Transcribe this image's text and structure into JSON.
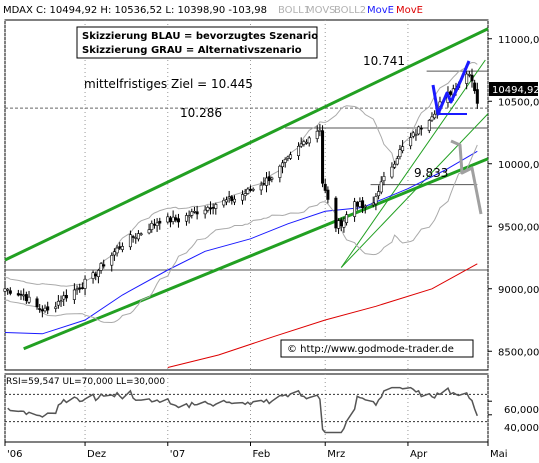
{
  "header": {
    "symbol": "MDAX",
    "quote": "C: 10494,92 H: 10536,52 L: 10398,90 -103,98",
    "indicators": [
      {
        "label": "BOLL1",
        "color": "#c0c0c0"
      },
      {
        "label": "MOVS",
        "color": "#c0c0c0"
      },
      {
        "label": "BOLL2",
        "color": "#c0c0c0"
      },
      {
        "label": "MovE",
        "color": "#1a1aff"
      },
      {
        "label": "MovE",
        "color": "#dd0000"
      }
    ]
  },
  "legend_box": {
    "line1": "Skizzierung BLAU = bevorzugtes Szenario",
    "line2": "Skizzierung GRAU = Alternativszenario"
  },
  "annotations": {
    "target": "mittelfristiges Ziel = 10.445",
    "level_high": "10.741",
    "level_mid": "10.286",
    "level_low": "9.833"
  },
  "credit": "© http://www.godmode-trader.de",
  "last_price_label": "10494,92",
  "rsi": {
    "header": "RSI=59,547 UL=70,000 LL=30,000",
    "upper": 70,
    "lower": 30,
    "ticks": [
      "60,000",
      "40,000"
    ]
  },
  "colors": {
    "channel": "#22a022",
    "blue_scenario": "#1a1aff",
    "grey_scenario": "#a0a0a0",
    "ma_blue": "#1a1aff",
    "ma_red": "#dd0000"
  },
  "chart_data": {
    "type": "candlestick",
    "title": "MDAX",
    "y_ticks": [
      "11000,00",
      "10500,00",
      "10000,00",
      "9500,00",
      "9000,00",
      "8500,00"
    ],
    "y_tick_values": [
      11000,
      10500,
      10000,
      9500,
      9000,
      8500
    ],
    "x_ticks": [
      {
        "label": "'06",
        "date": "2006-11-01"
      },
      {
        "label": "Dez",
        "date": "2006-12-01"
      },
      {
        "label": "'07",
        "date": "2007-01-01"
      },
      {
        "label": "Feb",
        "date": "2007-02-01"
      },
      {
        "label": "Mrz",
        "date": "2007-03-01"
      },
      {
        "label": "Apr",
        "date": "2007-04-01"
      },
      {
        "label": "Mai",
        "date": "2007-05-01"
      }
    ],
    "ylim": [
      8350,
      11150
    ],
    "date_range": [
      "2006-11-01",
      "2007-05-01"
    ],
    "horizontal_levels": [
      10741,
      10445,
      10286,
      9833,
      9150
    ],
    "close_path": [
      [
        "2006-11-01",
        9000
      ],
      [
        "2006-11-08",
        8950
      ],
      [
        "2006-11-13",
        8850
      ],
      [
        "2006-11-17",
        8820
      ],
      [
        "2006-11-22",
        8920
      ],
      [
        "2006-11-28",
        9000
      ],
      [
        "2006-12-04",
        9100
      ],
      [
        "2006-12-10",
        9250
      ],
      [
        "2006-12-16",
        9380
      ],
      [
        "2006-12-22",
        9450
      ],
      [
        "2006-12-29",
        9550
      ],
      [
        "2007-01-05",
        9550
      ],
      [
        "2007-01-12",
        9620
      ],
      [
        "2007-01-19",
        9680
      ],
      [
        "2007-01-26",
        9720
      ],
      [
        "2007-02-02",
        9800
      ],
      [
        "2007-02-09",
        9900
      ],
      [
        "2007-02-16",
        10050
      ],
      [
        "2007-02-22",
        10200
      ],
      [
        "2007-02-27",
        10286
      ],
      [
        "2007-02-28",
        9850
      ],
      [
        "2007-03-02",
        9700
      ],
      [
        "2007-03-05",
        9500
      ],
      [
        "2007-03-08",
        9550
      ],
      [
        "2007-03-12",
        9700
      ],
      [
        "2007-03-15",
        9650
      ],
      [
        "2007-03-18",
        9620
      ],
      [
        "2007-03-21",
        9800
      ],
      [
        "2007-03-25",
        9950
      ],
      [
        "2007-03-29",
        10100
      ],
      [
        "2007-04-04",
        10250
      ],
      [
        "2007-04-10",
        10400
      ],
      [
        "2007-04-16",
        10550
      ],
      [
        "2007-04-20",
        10650
      ],
      [
        "2007-04-24",
        10741
      ],
      [
        "2007-04-26",
        10600
      ],
      [
        "2007-04-27",
        10495
      ]
    ],
    "series": [
      {
        "name": "MovE",
        "color": "#1a1aff",
        "values": [
          [
            "2006-11-01",
            8650
          ],
          [
            "2006-11-15",
            8640
          ],
          [
            "2006-12-01",
            8750
          ],
          [
            "2006-12-15",
            8950
          ],
          [
            "2007-01-01",
            9150
          ],
          [
            "2007-01-15",
            9300
          ],
          [
            "2007-02-01",
            9400
          ],
          [
            "2007-02-15",
            9520
          ],
          [
            "2007-03-01",
            9620
          ],
          [
            "2007-03-15",
            9650
          ],
          [
            "2007-04-01",
            9800
          ],
          [
            "2007-04-15",
            9950
          ],
          [
            "2007-04-27",
            10100
          ]
        ]
      },
      {
        "name": "MovE",
        "color": "#dd0000",
        "values": [
          [
            "2007-01-01",
            8370
          ],
          [
            "2007-01-20",
            8470
          ],
          [
            "2007-02-10",
            8620
          ],
          [
            "2007-03-01",
            8750
          ],
          [
            "2007-03-20",
            8860
          ],
          [
            "2007-04-10",
            9000
          ],
          [
            "2007-04-27",
            9200
          ]
        ]
      }
    ]
  }
}
